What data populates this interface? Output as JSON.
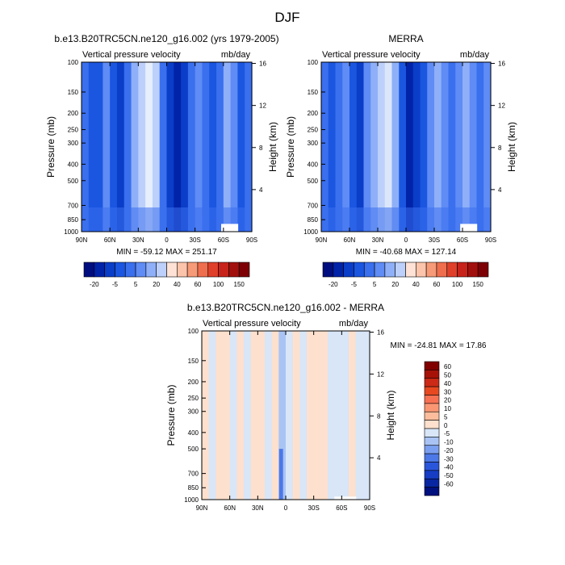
{
  "title": "DJF",
  "chart_data": [
    {
      "type": "heatmap",
      "title": "b.e13.B20TRC5CN.ne120_g16.002 (yrs 1979-2005)",
      "subtitle_left": "Vertical pressure velocity",
      "subtitle_right": "mb/day",
      "ylabel": "Pressure (mb)",
      "ylabel_right": "Height (km)",
      "x_ticks": [
        "90N",
        "60N",
        "30N",
        "0",
        "30S",
        "60S",
        "90S"
      ],
      "y_ticks": [
        "100",
        "150",
        "200",
        "250",
        "300",
        "400",
        "500",
        "700",
        "850",
        "1000"
      ],
      "height_ticks": [
        "16",
        "12",
        "8",
        "4"
      ],
      "stats": "MIN = -59.12  MAX = 251.17",
      "colorbar_labels": [
        "-20",
        "-5",
        "5",
        "20",
        "40",
        "60",
        "100",
        "150"
      ],
      "colorbar_colors": [
        "#000e7f",
        "#0023a8",
        "#0a3dc8",
        "#1a56e0",
        "#3a6fee",
        "#5f8cf5",
        "#8fb0f8",
        "#bcd0fb",
        "#fde2d5",
        "#fcc4aa",
        "#f79a78",
        "#ef6e4d",
        "#e0402a",
        "#c7231a",
        "#a2100d",
        "#7d0004"
      ],
      "ylim": [
        1000,
        100
      ],
      "xlim": [
        "90N",
        "90S"
      ]
    },
    {
      "type": "heatmap",
      "title": "MERRA",
      "subtitle_left": "Vertical pressure velocity",
      "subtitle_right": "mb/day",
      "ylabel": "Pressure (mb)",
      "ylabel_right": "Height (km)",
      "x_ticks": [
        "90N",
        "60N",
        "30N",
        "0",
        "30S",
        "60S",
        "90S"
      ],
      "y_ticks": [
        "100",
        "150",
        "200",
        "250",
        "300",
        "400",
        "500",
        "700",
        "850",
        "1000"
      ],
      "height_ticks": [
        "16",
        "12",
        "8",
        "4"
      ],
      "stats": "MIN = -40.68  MAX = 127.14",
      "colorbar_labels": [
        "-20",
        "-5",
        "5",
        "20",
        "40",
        "60",
        "100",
        "150"
      ],
      "colorbar_colors": [
        "#000e7f",
        "#0023a8",
        "#0a3dc8",
        "#1a56e0",
        "#3a6fee",
        "#5f8cf5",
        "#8fb0f8",
        "#bcd0fb",
        "#fde2d5",
        "#fcc4aa",
        "#f79a78",
        "#ef6e4d",
        "#e0402a",
        "#c7231a",
        "#a2100d",
        "#7d0004"
      ],
      "ylim": [
        1000,
        100
      ],
      "xlim": [
        "90N",
        "90S"
      ]
    },
    {
      "type": "heatmap",
      "title": "b.e13.B20TRC5CN.ne120_g16.002 - MERRA",
      "subtitle_left": "Vertical pressure velocity",
      "subtitle_right": "mb/day",
      "ylabel": "Pressure (mb)",
      "ylabel_right": "Height (km)",
      "x_ticks": [
        "90N",
        "60N",
        "30N",
        "0",
        "30S",
        "60S",
        "90S"
      ],
      "y_ticks": [
        "100",
        "150",
        "200",
        "250",
        "300",
        "400",
        "500",
        "700",
        "850",
        "1000"
      ],
      "height_ticks": [
        "16",
        "12",
        "8",
        "4"
      ],
      "stats": "MIN = -24.81  MAX =  17.86",
      "colorbar_labels": [
        "60",
        "50",
        "40",
        "30",
        "20",
        "10",
        "5",
        "0",
        "-5",
        "-10",
        "-20",
        "-30",
        "-40",
        "-50",
        "-60"
      ],
      "colorbar_colors": [
        "#800000",
        "#a71208",
        "#cc2a16",
        "#e8481f",
        "#f77052",
        "#fb9673",
        "#fdbd9c",
        "#fde0cd",
        "#d8e6f8",
        "#a9c4f4",
        "#7b9ff0",
        "#4c78e8",
        "#2a56dc",
        "#163dc4",
        "#0826a2",
        "#00107e"
      ],
      "ylim": [
        1000,
        100
      ],
      "xlim": [
        "90N",
        "90S"
      ]
    }
  ]
}
